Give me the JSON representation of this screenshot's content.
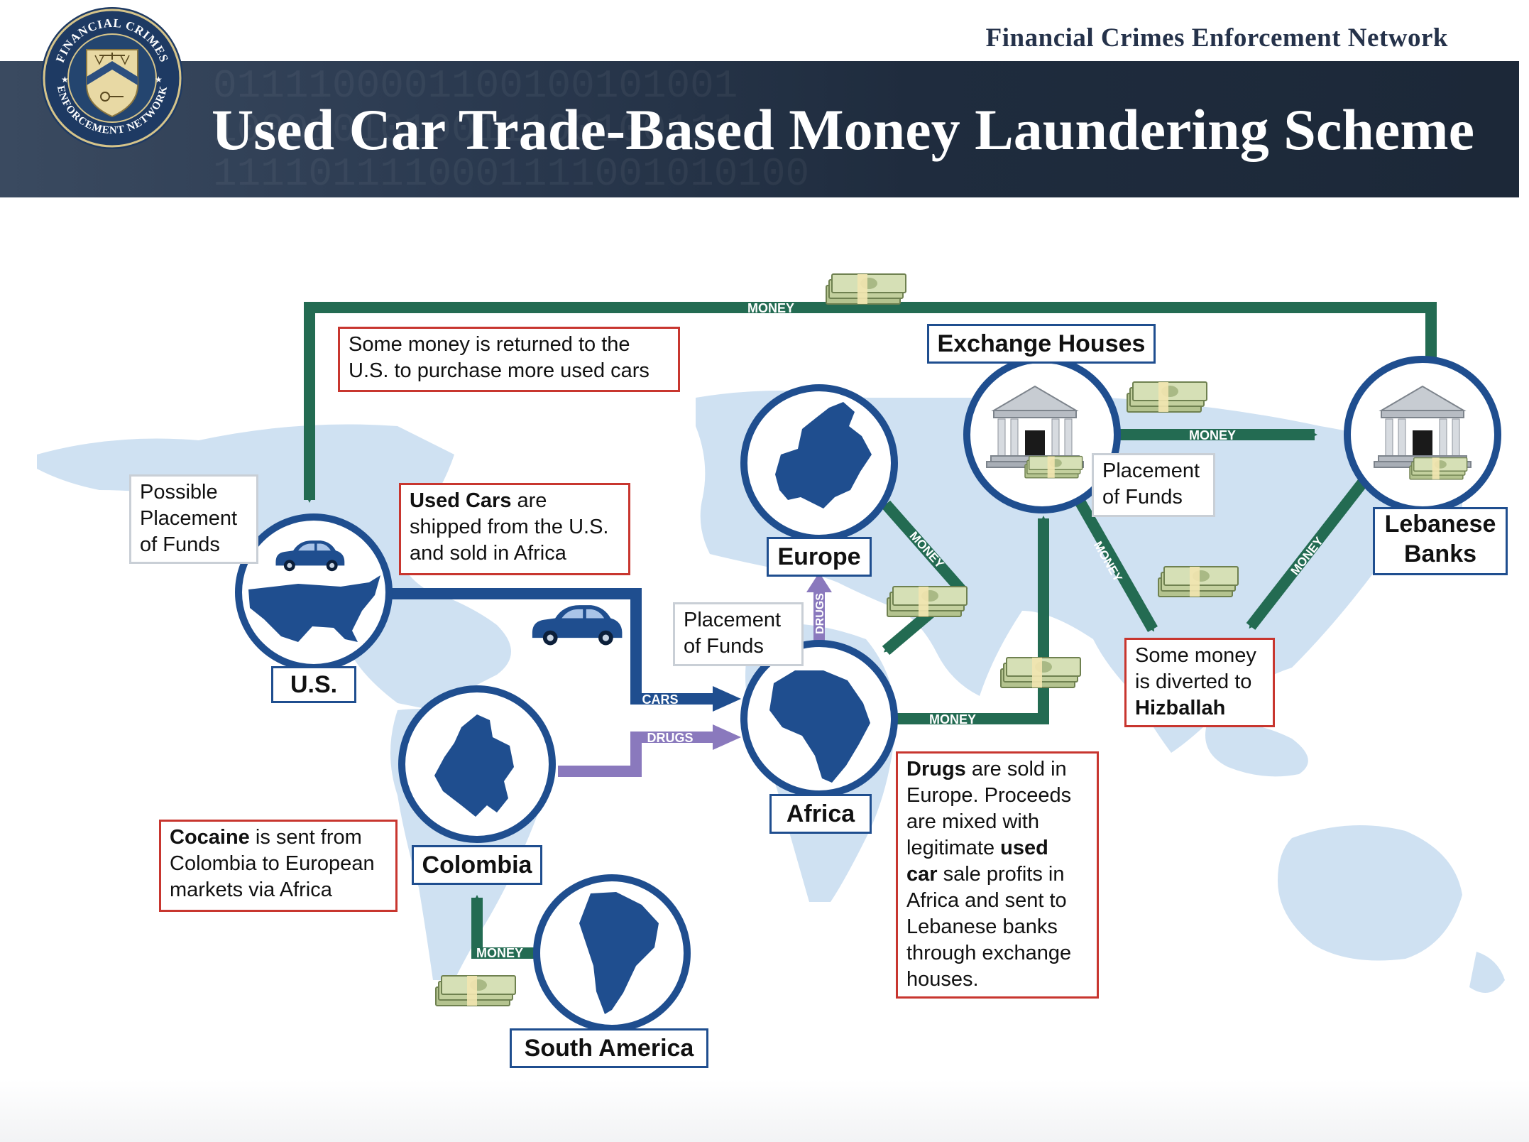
{
  "header": {
    "network_name": "Financial Crimes Enforcement Network",
    "title": "Used Car Trade-Based Money Laundering Scheme",
    "seal": {
      "top_text": "FINANCIAL CRIMES",
      "bottom_text": "ENFORCEMENT NETWORK"
    }
  },
  "nodes": {
    "us": "U.S.",
    "colombia": "Colombia",
    "south_america": "South America",
    "europe": "Europe",
    "africa": "Africa",
    "exchange_houses": "Exchange Houses",
    "lebanese_banks_line1": "Lebanese",
    "lebanese_banks_line2": "Banks"
  },
  "flows": {
    "money_top": "MONEY",
    "money_exchange_to_banks": "MONEY",
    "money_europe_to_africa": "MONEY",
    "money_exchange_to_hizballah": "MONEY",
    "money_banks_to_hizballah": "MONEY",
    "money_africa_to_exchange": "MONEY",
    "money_south_america": "MONEY",
    "cars": "CARS",
    "drugs_colombia": "DRUGS",
    "drugs_africa_to_europe": "DRUGS"
  },
  "notes": {
    "returned_line1": "Some money is returned to the",
    "returned_line2": "U.S. to purchase more used cars",
    "possible_line1": "Possible",
    "possible_line2": "Placement",
    "possible_line3": "of Funds",
    "cars_bold": "Used Cars",
    "cars_rest1": " are",
    "cars_line2": "shipped from the U.S.",
    "cars_line3": "and sold in Africa",
    "placement_africa_line1": "Placement",
    "placement_africa_line2": "of Funds",
    "placement_exchange_line1": "Placement",
    "placement_exchange_line2": "of Funds",
    "cocaine_bold": "Cocaine",
    "cocaine_rest1": " is sent from",
    "cocaine_line2": "Colombia to European",
    "cocaine_line3": "markets via Africa",
    "drugs_bold1": "Drugs",
    "drugs_rest1": " are sold in",
    "drugs_line2": "Europe.  Proceeds",
    "drugs_line3": "are mixed with",
    "drugs_line4_pre": "legitimate ",
    "drugs_line4_bold": "used",
    "drugs_line5_bold": "car",
    "drugs_line5_rest": " sale profits in",
    "drugs_line6": "Africa and sent to",
    "drugs_line7": "Lebanese banks",
    "drugs_line8": "through exchange",
    "drugs_line9": "houses.",
    "hizballah_line1": "Some money",
    "hizballah_line2": "is diverted to",
    "hizballah_bold": "Hizballah"
  },
  "colors": {
    "banner": "#1f2c3e",
    "map_land": "#cfe1f2",
    "region_blue": "#1f4e8f",
    "money_green": "#236b52",
    "drugs_purple": "#8a79bd",
    "callout_red": "#c8362f",
    "callout_gray": "#c9cfd6"
  },
  "icons": [
    "seal-icon",
    "car-icon",
    "bank-building-icon",
    "cash-stack-icon",
    "us-map-icon",
    "colombia-map-icon",
    "south-america-map-icon",
    "europe-map-icon",
    "africa-map-icon"
  ]
}
